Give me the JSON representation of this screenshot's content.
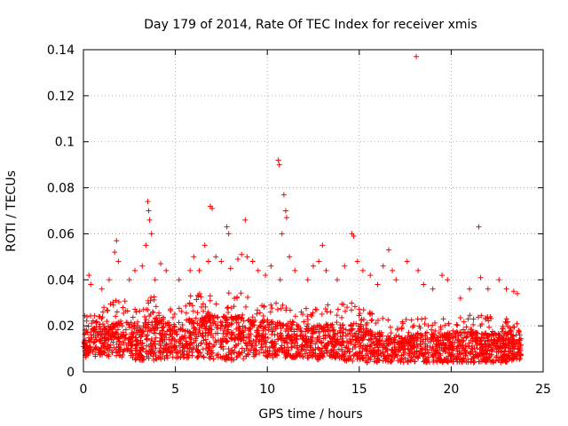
{
  "chart_data": {
    "type": "scatter",
    "title": "Day 179 of 2014, Rate Of TEC Index for receiver xmis",
    "xlabel": "GPS time / hours",
    "ylabel": "ROTI / TECUs",
    "xlim": [
      0,
      25
    ],
    "ylim": [
      0,
      0.14
    ],
    "grid": true,
    "marker": "+",
    "series_color": "#ff0000",
    "x_ticks": [
      0,
      5,
      10,
      15,
      20,
      25
    ],
    "x_tick_labels": [
      "0",
      "5",
      "10",
      "15",
      "20",
      "25"
    ],
    "y_ticks": [
      0,
      0.02,
      0.04,
      0.06,
      0.08,
      0.1,
      0.12,
      0.14
    ],
    "y_tick_labels": [
      "0",
      "0.02",
      "0.04",
      "0.06",
      "0.08",
      "0.1",
      "0.12",
      "0.14"
    ],
    "bulk": {
      "description_of_dense_band": "continuous dense cloud of points",
      "x_range": [
        0,
        23.8
      ],
      "envelope": [
        {
          "x": 0.0,
          "low": 0.006,
          "high": 0.025
        },
        {
          "x": 1.0,
          "low": 0.007,
          "high": 0.028
        },
        {
          "x": 2.0,
          "low": 0.006,
          "high": 0.032
        },
        {
          "x": 3.0,
          "low": 0.005,
          "high": 0.03
        },
        {
          "x": 4.0,
          "low": 0.005,
          "high": 0.034
        },
        {
          "x": 5.0,
          "low": 0.006,
          "high": 0.03
        },
        {
          "x": 6.0,
          "low": 0.006,
          "high": 0.034
        },
        {
          "x": 7.0,
          "low": 0.005,
          "high": 0.036
        },
        {
          "x": 8.0,
          "low": 0.005,
          "high": 0.036
        },
        {
          "x": 9.0,
          "low": 0.006,
          "high": 0.034
        },
        {
          "x": 10.0,
          "low": 0.006,
          "high": 0.032
        },
        {
          "x": 11.0,
          "low": 0.006,
          "high": 0.03
        },
        {
          "x": 12.0,
          "low": 0.006,
          "high": 0.028
        },
        {
          "x": 13.0,
          "low": 0.005,
          "high": 0.03
        },
        {
          "x": 14.0,
          "low": 0.005,
          "high": 0.03
        },
        {
          "x": 15.0,
          "low": 0.004,
          "high": 0.03
        },
        {
          "x": 16.0,
          "low": 0.004,
          "high": 0.024
        },
        {
          "x": 17.0,
          "low": 0.004,
          "high": 0.022
        },
        {
          "x": 18.0,
          "low": 0.004,
          "high": 0.024
        },
        {
          "x": 19.0,
          "low": 0.004,
          "high": 0.024
        },
        {
          "x": 20.0,
          "low": 0.004,
          "high": 0.024
        },
        {
          "x": 21.0,
          "low": 0.004,
          "high": 0.026
        },
        {
          "x": 22.0,
          "low": 0.004,
          "high": 0.024
        },
        {
          "x": 23.0,
          "low": 0.004,
          "high": 0.024
        },
        {
          "x": 23.8,
          "low": 0.005,
          "high": 0.022
        }
      ]
    },
    "points": [
      [
        0.3,
        0.042
      ],
      [
        0.4,
        0.038
      ],
      [
        1.0,
        0.036
      ],
      [
        1.4,
        0.04
      ],
      [
        1.7,
        0.052
      ],
      [
        1.8,
        0.057
      ],
      [
        1.9,
        0.048
      ],
      [
        2.5,
        0.04
      ],
      [
        2.8,
        0.044
      ],
      [
        3.2,
        0.046
      ],
      [
        3.4,
        0.055
      ],
      [
        3.5,
        0.074
      ],
      [
        3.55,
        0.07
      ],
      [
        3.6,
        0.066
      ],
      [
        3.7,
        0.06
      ],
      [
        3.9,
        0.04
      ],
      [
        4.2,
        0.047
      ],
      [
        4.5,
        0.044
      ],
      [
        5.2,
        0.04
      ],
      [
        5.8,
        0.044
      ],
      [
        6.0,
        0.05
      ],
      [
        6.3,
        0.044
      ],
      [
        6.6,
        0.055
      ],
      [
        6.8,
        0.048
      ],
      [
        6.9,
        0.072
      ],
      [
        7.0,
        0.071
      ],
      [
        7.2,
        0.05
      ],
      [
        7.5,
        0.048
      ],
      [
        7.8,
        0.063
      ],
      [
        7.9,
        0.06
      ],
      [
        8.0,
        0.045
      ],
      [
        8.4,
        0.049
      ],
      [
        8.6,
        0.051
      ],
      [
        8.8,
        0.066
      ],
      [
        8.9,
        0.05
      ],
      [
        9.2,
        0.048
      ],
      [
        9.5,
        0.044
      ],
      [
        9.9,
        0.042
      ],
      [
        10.2,
        0.046
      ],
      [
        10.6,
        0.092
      ],
      [
        10.65,
        0.09
      ],
      [
        10.7,
        0.04
      ],
      [
        10.8,
        0.06
      ],
      [
        10.9,
        0.077
      ],
      [
        11.0,
        0.07
      ],
      [
        11.05,
        0.067
      ],
      [
        11.2,
        0.05
      ],
      [
        11.5,
        0.044
      ],
      [
        12.2,
        0.04
      ],
      [
        12.5,
        0.046
      ],
      [
        12.8,
        0.048
      ],
      [
        13.0,
        0.055
      ],
      [
        13.2,
        0.044
      ],
      [
        13.8,
        0.04
      ],
      [
        14.2,
        0.046
      ],
      [
        14.6,
        0.06
      ],
      [
        14.7,
        0.059
      ],
      [
        14.9,
        0.048
      ],
      [
        15.2,
        0.044
      ],
      [
        15.6,
        0.042
      ],
      [
        16.0,
        0.038
      ],
      [
        16.3,
        0.046
      ],
      [
        16.6,
        0.053
      ],
      [
        16.8,
        0.044
      ],
      [
        17.0,
        0.04
      ],
      [
        17.6,
        0.048
      ],
      [
        18.1,
        0.137
      ],
      [
        18.2,
        0.044
      ],
      [
        18.5,
        0.038
      ],
      [
        19.0,
        0.036
      ],
      [
        19.5,
        0.042
      ],
      [
        19.8,
        0.04
      ],
      [
        20.5,
        0.032
      ],
      [
        21.0,
        0.036
      ],
      [
        21.5,
        0.063
      ],
      [
        21.6,
        0.041
      ],
      [
        22.0,
        0.036
      ],
      [
        22.6,
        0.04
      ],
      [
        23.0,
        0.036
      ],
      [
        23.4,
        0.035
      ],
      [
        23.6,
        0.034
      ]
    ]
  }
}
